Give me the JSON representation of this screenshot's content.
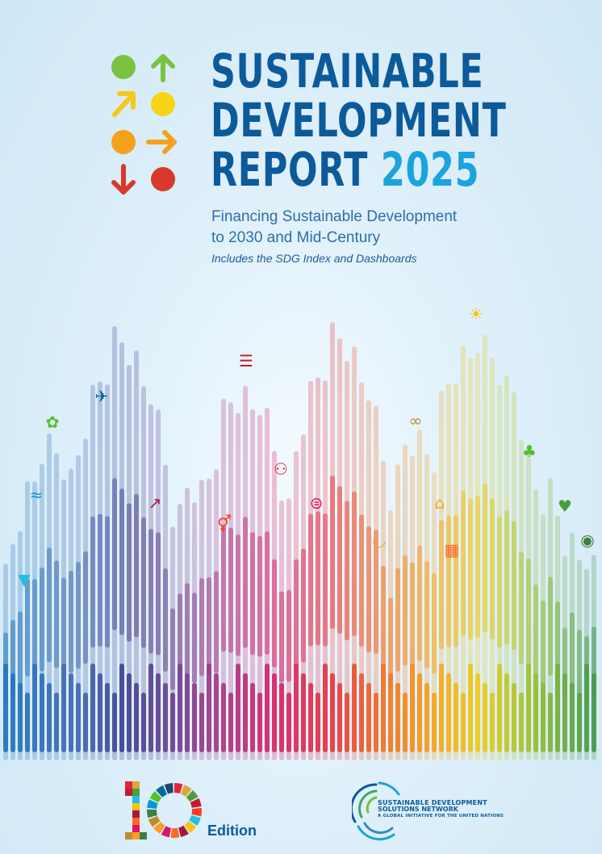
{
  "report": {
    "title_line1": "SUSTAINABLE",
    "title_line2": "DEVELOPMENT",
    "title_line3": "REPORT",
    "year": "2025",
    "subtitle_line1": "Financing Sustainable Development",
    "subtitle_line2": "to 2030 and Mid-Century",
    "tagline": "Includes the SDG Index and Dashboards"
  },
  "footer": {
    "edition_number": "10",
    "edition_label": "Edition",
    "org_line1": "SUSTAINABLE DEVELOPMENT",
    "org_line2": "SOLUTIONS NETWORK",
    "org_line3": "A GLOBAL INITIATIVE FOR THE UNITED NATIONS"
  },
  "colors": {
    "title_blue": "#0c5a9a",
    "year_blue": "#1ba3dd",
    "logo_green": "#7cc242",
    "logo_yellow": "#f7d417",
    "logo_orange": "#f5a11e",
    "logo_red": "#d8392c"
  },
  "logo_icons": [
    "green-dot",
    "up-arrow",
    "up-right-arrow",
    "yellow-dot",
    "orange-dot",
    "right-arrow",
    "down-arrow",
    "red-dot"
  ],
  "bar_icons": [
    "water-drop-icon",
    "fish-icon",
    "flower-icon",
    "peace-dove-icon",
    "growth-chart-icon",
    "gender-equality-icon",
    "education-book-icon",
    "people-icon",
    "reduced-inequality-icon",
    "food-bowl-icon",
    "infinity-icon",
    "city-icon",
    "blocks-icon",
    "sun-energy-icon",
    "tree-icon",
    "heartbeat-icon",
    "eye-planet-icon"
  ]
}
